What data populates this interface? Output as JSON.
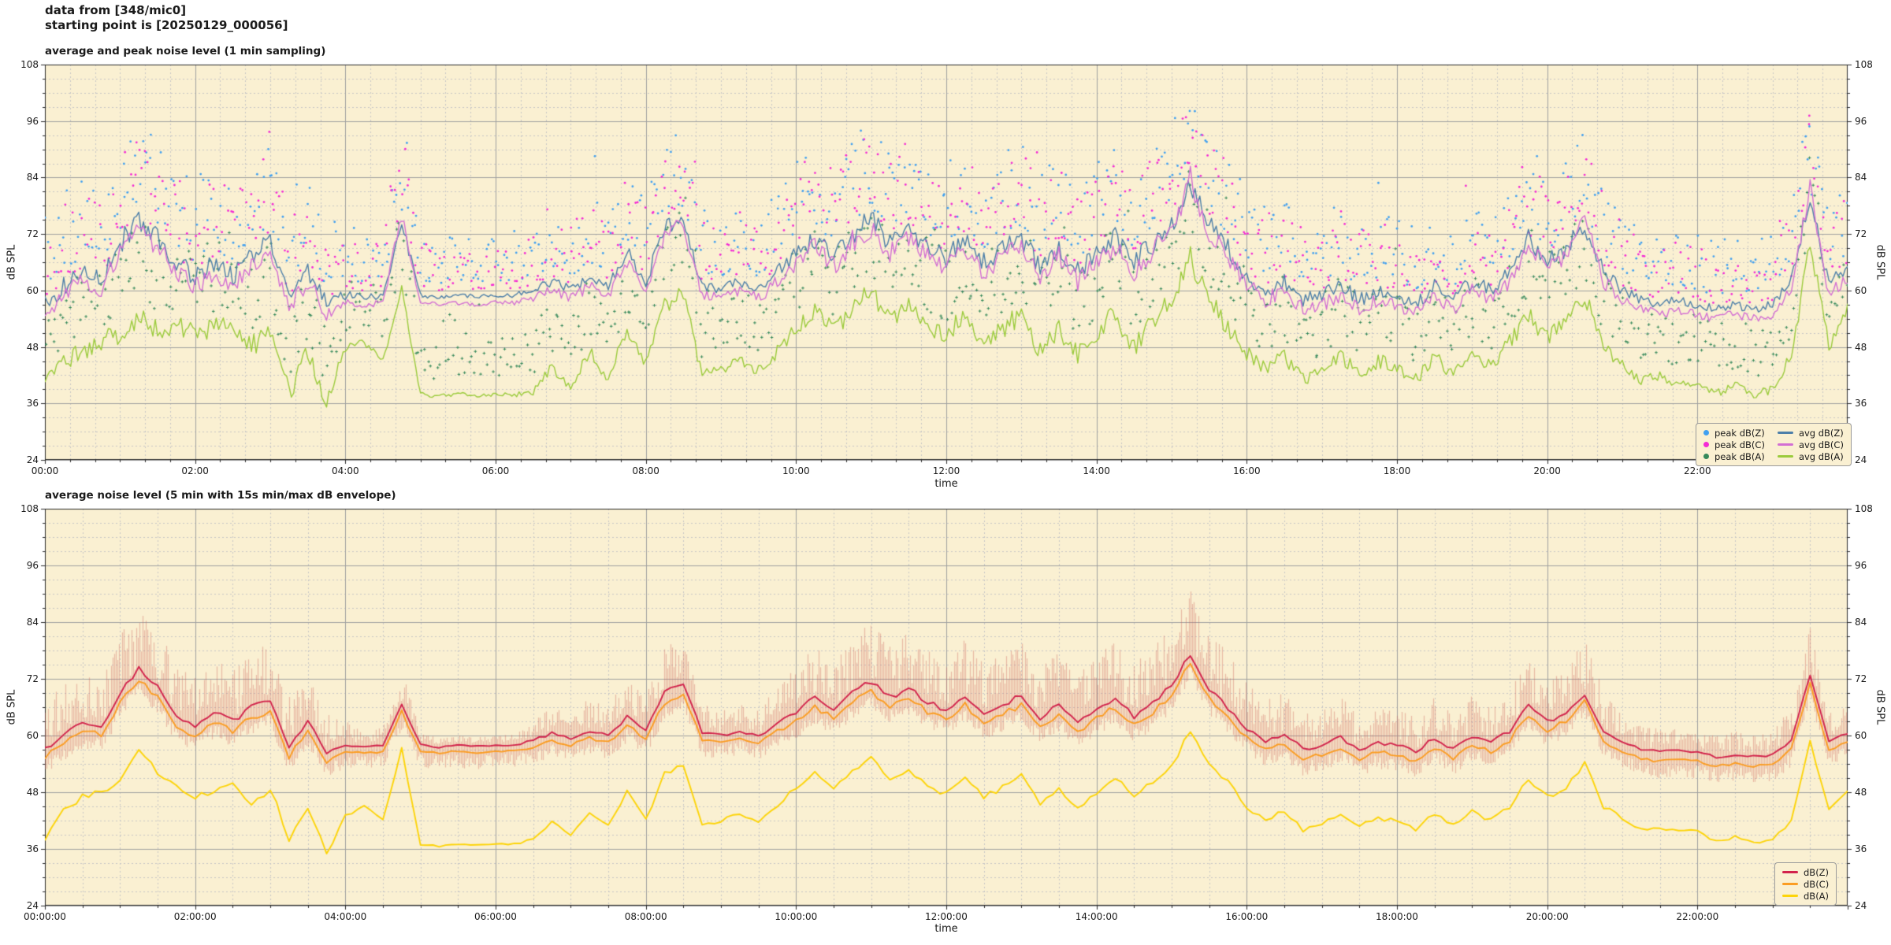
{
  "header": {
    "line1": "data from [348/mic0]",
    "line2": "starting point is [20250129_000056]"
  },
  "chart_data": [
    {
      "id": "top",
      "type": "line+scatter",
      "title": "average and peak noise level (1 min sampling)",
      "xlabel": "time",
      "ylabel": "dB SPL",
      "ylim": [
        24,
        108
      ],
      "yticks": [
        24,
        36,
        48,
        60,
        72,
        84,
        96,
        108
      ],
      "y_minor_step_db": 3,
      "xlim_hours": [
        0,
        24
      ],
      "xtick_hours": [
        0,
        2,
        4,
        6,
        8,
        10,
        12,
        14,
        16,
        18,
        20,
        22
      ],
      "xtick_labels": [
        "00:00",
        "02:00",
        "04:00",
        "06:00",
        "08:00",
        "10:00",
        "12:00",
        "14:00",
        "16:00",
        "18:00",
        "20:00",
        "22:00"
      ],
      "x_minor_step_min": 20,
      "background": "#faf0d2",
      "grid": "on",
      "legend_position": "lower right",
      "sample_step_min": 15,
      "activity": [
        0.7,
        0.8,
        0.8,
        0.8,
        0.9,
        1,
        0.9,
        0.8,
        0.8,
        0.8,
        0.8,
        0.9,
        0.9,
        0.8,
        0.7,
        0.6,
        0.3,
        0.15,
        0.2,
        0.5,
        0.1,
        0.05,
        0.05,
        0.05,
        0.05,
        0.08,
        0.2,
        0.4,
        0.3,
        0.5,
        0.4,
        0.6,
        0.5,
        0.7,
        0.7,
        0.4,
        0.3,
        0.4,
        0.4,
        0.5,
        0.7,
        0.8,
        0.8,
        0.9,
        0.9,
        0.8,
        0.9,
        0.8,
        0.8,
        0.9,
        0.8,
        0.8,
        0.9,
        0.8,
        0.8,
        0.8,
        0.8,
        0.9,
        0.8,
        0.9,
        0.9,
        1,
        0.9,
        0.8,
        0.7,
        0.6,
        0.6,
        0.5,
        0.5,
        0.6,
        0.5,
        0.6,
        0.5,
        0.5,
        0.6,
        0.5,
        0.6,
        0.5,
        0.6,
        0.8,
        0.7,
        0.7,
        0.8,
        0.6,
        0.4,
        0.3,
        0.3,
        0.3,
        0.3,
        0.25,
        0.3,
        0.25,
        0.3,
        0.5,
        0.8,
        0.5,
        0.6
      ],
      "line_jitter_db": 2.6,
      "series": [
        {
          "name": "avg dB(Z)",
          "type": "line",
          "color": "#4d7fa9",
          "width": 1.4,
          "values": [
            57,
            61,
            64,
            62,
            70,
            75,
            71,
            66,
            63,
            66,
            63,
            67,
            70,
            58,
            64,
            57,
            59,
            58.5,
            59,
            74,
            59,
            58.6,
            59,
            58.7,
            59,
            59,
            60,
            62,
            60,
            63,
            61,
            68,
            62,
            73,
            75,
            61,
            60,
            62,
            60,
            64,
            68,
            71,
            67,
            72,
            75,
            70,
            73,
            69,
            67,
            71,
            66,
            69,
            71,
            65,
            69,
            64,
            68,
            71,
            66,
            70,
            74,
            83,
            74,
            69,
            63,
            60,
            62,
            58,
            59,
            61,
            58,
            60,
            59,
            57,
            61,
            58,
            62,
            60,
            64,
            71,
            66,
            69,
            74,
            64,
            60,
            58,
            57,
            58,
            57,
            56,
            57,
            56,
            57,
            62,
            80,
            61,
            65
          ]
        },
        {
          "name": "avg dB(C)",
          "type": "line",
          "color": "#d36fd3",
          "width": 1.4,
          "values": [
            55,
            59,
            62,
            60,
            68.5,
            74,
            69,
            64,
            61,
            64,
            61,
            65.5,
            69,
            56,
            62,
            55,
            57.3,
            57,
            57.3,
            76,
            57.4,
            57,
            57.3,
            57,
            57.4,
            57.3,
            58.3,
            60,
            58.3,
            61,
            59,
            66.5,
            60,
            72,
            74,
            59,
            58.3,
            60,
            58.2,
            62,
            66,
            69.5,
            65,
            70.5,
            73.5,
            68,
            71.5,
            67,
            65,
            69.5,
            64,
            67,
            69.5,
            63,
            67.5,
            62,
            66.5,
            69.5,
            64,
            68.5,
            72.5,
            84,
            72,
            67,
            61,
            58,
            60,
            56,
            57,
            59,
            56,
            58,
            57,
            55,
            59,
            56,
            60,
            58,
            62,
            69.5,
            64,
            67.5,
            76,
            62,
            58,
            56,
            55,
            56,
            55,
            54,
            55,
            54,
            55,
            60,
            82,
            59,
            63
          ]
        },
        {
          "name": "avg dB(A)",
          "type": "line",
          "color": "#9bcb3c",
          "width": 1.4,
          "values": [
            40,
            45,
            47,
            49,
            51,
            54,
            52,
            52.5,
            51,
            52,
            53,
            48,
            52,
            38,
            47,
            36,
            48,
            49,
            45,
            61,
            38,
            37.5,
            38,
            37.6,
            38,
            37.8,
            38.5,
            44,
            39,
            47,
            41,
            52,
            44,
            57,
            59,
            42,
            43,
            45,
            43,
            47,
            52,
            56,
            51,
            57,
            60,
            54,
            57,
            52,
            50,
            55,
            49,
            52,
            55,
            47,
            52,
            46,
            51,
            55,
            48,
            53,
            58,
            67,
            58,
            52,
            47,
            43,
            46,
            41,
            43,
            46,
            42,
            45,
            44,
            41,
            46,
            42,
            47,
            44,
            49,
            55,
            50,
            53,
            59,
            48,
            44,
            41,
            42,
            40,
            41,
            38,
            40,
            38,
            39,
            46,
            70,
            48,
            57
          ]
        },
        {
          "name": "peak dB(Z)",
          "type": "scatter",
          "color": "#41a0f0",
          "base_series": 0,
          "offset_min_db": 3,
          "offset_range_db": 19
        },
        {
          "name": "peak dB(C)",
          "type": "scatter",
          "color": "#f42bd5",
          "base_series": 1,
          "offset_min_db": 3,
          "offset_range_db": 19
        },
        {
          "name": "peak dB(A)",
          "type": "scatter",
          "color": "#35895b",
          "base_series": 2,
          "offset_min_db": 3.5,
          "offset_range_db": 17
        }
      ],
      "legend_entries": [
        {
          "label": "peak dB(Z)",
          "marker": "dot",
          "color": "#41a0f0"
        },
        {
          "label": "avg dB(Z)",
          "marker": "line",
          "color": "#4d7fa9"
        },
        {
          "label": "peak dB(C)",
          "marker": "dot",
          "color": "#f42bd5"
        },
        {
          "label": "avg dB(C)",
          "marker": "line",
          "color": "#d36fd3"
        },
        {
          "label": "peak dB(A)",
          "marker": "dot",
          "color": "#35895b"
        },
        {
          "label": "avg dB(A)",
          "marker": "line",
          "color": "#9bcb3c"
        }
      ]
    },
    {
      "id": "bottom",
      "type": "line+envelope",
      "title": "average noise level (5 min with 15s min/max dB envelope)",
      "xlabel": "time",
      "ylabel": "dB SPL",
      "ylim": [
        24,
        108
      ],
      "yticks": [
        24,
        36,
        48,
        60,
        72,
        84,
        96,
        108
      ],
      "y_minor_step_db": 3,
      "xlim_hours": [
        0,
        24
      ],
      "xtick_hours": [
        0,
        2,
        4,
        6,
        8,
        10,
        12,
        14,
        16,
        18,
        20,
        22
      ],
      "xtick_labels": [
        "00:00:00",
        "02:00:00",
        "04:00:00",
        "06:00:00",
        "08:00:00",
        "10:00:00",
        "12:00:00",
        "14:00:00",
        "16:00:00",
        "18:00:00",
        "20:00:00",
        "22:00:00"
      ],
      "x_minor_step_min": 30,
      "background": "#faf0d2",
      "grid": "on",
      "legend_position": "lower right",
      "sample_step_min": 15,
      "activity": [
        0.7,
        0.8,
        0.8,
        0.8,
        0.9,
        1,
        0.9,
        0.8,
        0.8,
        0.8,
        0.8,
        0.9,
        0.9,
        0.8,
        0.7,
        0.6,
        0.3,
        0.15,
        0.2,
        0.5,
        0.1,
        0.05,
        0.05,
        0.05,
        0.05,
        0.08,
        0.2,
        0.4,
        0.3,
        0.5,
        0.4,
        0.6,
        0.5,
        0.7,
        0.7,
        0.4,
        0.3,
        0.4,
        0.4,
        0.5,
        0.7,
        0.8,
        0.8,
        0.9,
        0.9,
        0.8,
        0.9,
        0.8,
        0.8,
        0.9,
        0.8,
        0.8,
        0.9,
        0.8,
        0.8,
        0.8,
        0.8,
        0.9,
        0.8,
        0.9,
        0.9,
        1,
        0.9,
        0.8,
        0.7,
        0.6,
        0.6,
        0.5,
        0.5,
        0.6,
        0.5,
        0.6,
        0.5,
        0.5,
        0.6,
        0.5,
        0.6,
        0.5,
        0.6,
        0.8,
        0.7,
        0.7,
        0.8,
        0.6,
        0.4,
        0.3,
        0.3,
        0.3,
        0.3,
        0.25,
        0.3,
        0.25,
        0.3,
        0.5,
        0.8,
        0.5,
        0.6
      ],
      "line_jitter_db": 0.7,
      "envelope": {
        "base": "dB(Z)",
        "color": "#ce625a",
        "alpha": 0.38,
        "max_above_db": 13,
        "below_db": 3
      },
      "series": [
        {
          "name": "dB(Z)",
          "type": "line",
          "color": "#d2234c",
          "width": 1.9,
          "values": [
            57,
            60,
            63,
            62,
            69,
            74,
            70,
            64,
            62,
            65,
            63,
            66,
            67,
            57,
            63,
            56,
            58,
            57.5,
            58,
            67,
            58,
            57.5,
            58,
            57.8,
            58,
            58,
            59,
            60.5,
            59.5,
            61,
            60,
            64,
            61,
            69,
            71,
            60.5,
            60,
            61,
            60,
            62.5,
            65,
            68,
            65.5,
            69,
            71.5,
            68,
            70,
            67,
            65.5,
            68.5,
            64.5,
            66.5,
            68.5,
            63.5,
            66.5,
            62.5,
            65.5,
            68,
            64,
            67,
            70.5,
            77.5,
            70,
            66,
            61.5,
            59,
            60.5,
            57,
            58,
            59.5,
            57,
            58.5,
            58,
            56.5,
            59.5,
            57,
            60,
            58.5,
            61,
            66.5,
            63,
            65,
            69,
            61,
            58.5,
            57,
            56.5,
            56.8,
            56.5,
            55.5,
            56,
            55.5,
            55.8,
            59,
            73,
            58.5,
            60.5
          ]
        },
        {
          "name": "dB(C)",
          "type": "line",
          "color": "#fb9d23",
          "width": 1.9,
          "values": [
            55.5,
            58,
            61,
            60,
            67,
            72,
            68,
            62,
            60,
            63,
            61,
            64,
            65,
            55.5,
            61,
            54.5,
            56.6,
            56.2,
            56.6,
            65,
            56.7,
            56.3,
            56.7,
            56.4,
            56.7,
            56.7,
            57.5,
            59,
            58,
            59.5,
            58.5,
            62,
            59.5,
            67,
            69,
            59,
            58.5,
            59.5,
            58.5,
            61,
            63,
            66,
            63.5,
            67,
            69.5,
            66,
            68,
            65,
            63.5,
            66.5,
            62.5,
            64.5,
            66.5,
            61.5,
            64.5,
            60.5,
            63.5,
            66,
            62,
            65,
            68.5,
            75.5,
            68,
            64,
            59.5,
            57,
            58.5,
            55,
            56,
            57.5,
            55,
            56.5,
            56,
            54.5,
            57.5,
            55,
            58,
            56.5,
            59,
            64.5,
            61,
            63,
            67,
            59,
            56.5,
            55,
            54.5,
            54.8,
            54.5,
            53.5,
            54,
            53.5,
            53.8,
            57,
            71,
            56.5,
            58.5
          ]
        },
        {
          "name": "dB(A)",
          "type": "line",
          "color": "#fdd409",
          "width": 1.9,
          "values": [
            38,
            44,
            47,
            48,
            50,
            57,
            52,
            49,
            47,
            48,
            50,
            45,
            49,
            38,
            45,
            35,
            43,
            45,
            42,
            57,
            37,
            36.5,
            37,
            36.8,
            37,
            37,
            38,
            42,
            39,
            44,
            41,
            48,
            42,
            52,
            54,
            41,
            42,
            43.5,
            42,
            45,
            49,
            52,
            49,
            53,
            55,
            51,
            53,
            49,
            47.5,
            51,
            47,
            49,
            51.5,
            45.5,
            49,
            44.5,
            48,
            51,
            47,
            50,
            53.5,
            61,
            54,
            50,
            45,
            42,
            44,
            40,
            41.5,
            43.5,
            41,
            42.5,
            42,
            40,
            43.5,
            41,
            44,
            42,
            45,
            51,
            47,
            49,
            54,
            45,
            42.5,
            40,
            40.5,
            39.8,
            40,
            37.5,
            38.5,
            37.2,
            37.8,
            42,
            59,
            44,
            48
          ]
        }
      ],
      "legend_entries": [
        {
          "label": "dB(Z)",
          "marker": "line",
          "color": "#d2234c"
        },
        {
          "label": "dB(C)",
          "marker": "line",
          "color": "#fb9d23"
        },
        {
          "label": "dB(A)",
          "marker": "line",
          "color": "#fdd409"
        }
      ]
    }
  ]
}
